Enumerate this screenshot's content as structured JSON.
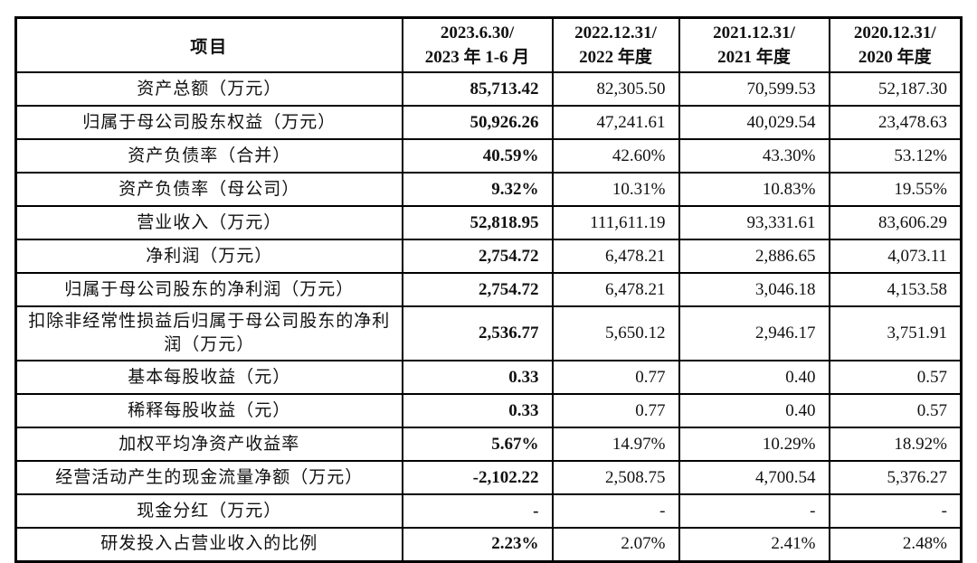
{
  "header": {
    "item_label": "项目",
    "columns": [
      {
        "line1": "2023.6.30/",
        "line2": "2023 年 1-6 月"
      },
      {
        "line1": "2022.12.31/",
        "line2": "2022 年度"
      },
      {
        "line1": "2021.12.31/",
        "line2": "2021 年度"
      },
      {
        "line1": "2020.12.31/",
        "line2": "2020 年度"
      }
    ]
  },
  "rows": [
    {
      "label": "资产总额（万元）",
      "values": [
        "85,713.42",
        "82,305.50",
        "70,599.53",
        "52,187.30"
      ]
    },
    {
      "label": "归属于母公司股东权益（万元）",
      "values": [
        "50,926.26",
        "47,241.61",
        "40,029.54",
        "23,478.63"
      ]
    },
    {
      "label": "资产负债率（合并）",
      "values": [
        "40.59%",
        "42.60%",
        "43.30%",
        "53.12%"
      ]
    },
    {
      "label": "资产负债率（母公司）",
      "values": [
        "9.32%",
        "10.31%",
        "10.83%",
        "19.55%"
      ]
    },
    {
      "label": "营业收入（万元）",
      "values": [
        "52,818.95",
        "111,611.19",
        "93,331.61",
        "83,606.29"
      ]
    },
    {
      "label": "净利润（万元）",
      "values": [
        "2,754.72",
        "6,478.21",
        "2,886.65",
        "4,073.11"
      ]
    },
    {
      "label": "归属于母公司股东的净利润（万元）",
      "values": [
        "2,754.72",
        "6,478.21",
        "3,046.18",
        "4,153.58"
      ]
    },
    {
      "label": "扣除非经常性损益后归属于母公司股东的净利润（万元）",
      "values": [
        "2,536.77",
        "5,650.12",
        "2,946.17",
        "3,751.91"
      ]
    },
    {
      "label": "基本每股收益（元）",
      "values": [
        "0.33",
        "0.77",
        "0.40",
        "0.57"
      ]
    },
    {
      "label": "稀释每股收益（元）",
      "values": [
        "0.33",
        "0.77",
        "0.40",
        "0.57"
      ]
    },
    {
      "label": "加权平均净资产收益率",
      "values": [
        "5.67%",
        "14.97%",
        "10.29%",
        "18.92%"
      ]
    },
    {
      "label": "经营活动产生的现金流量净额（万元）",
      "values": [
        "-2,102.22",
        "2,508.75",
        "4,700.54",
        "5,376.27"
      ]
    },
    {
      "label": "现金分红（万元）",
      "values": [
        "-",
        "-",
        "-",
        "-"
      ]
    },
    {
      "label": "研发投入占营业收入的比例",
      "values": [
        "2.23%",
        "2.07%",
        "2.41%",
        "2.48%"
      ]
    }
  ]
}
